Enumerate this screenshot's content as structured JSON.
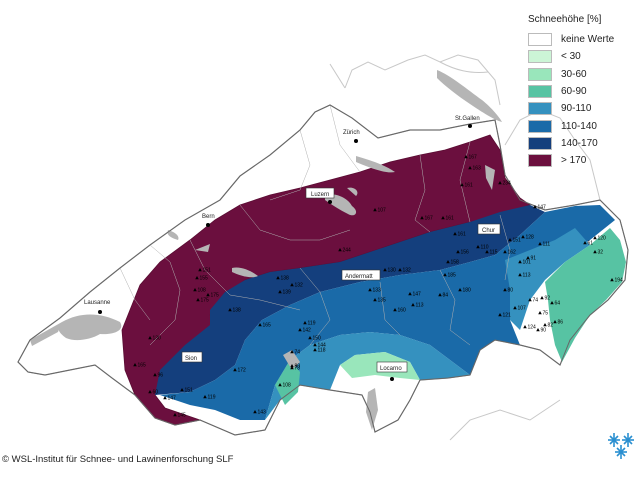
{
  "legend": {
    "title": "Schneehöhe [%]",
    "items": [
      {
        "label": "keine Werte",
        "color": "#ffffff"
      },
      {
        "label": "< 30",
        "color": "#ccf5d6"
      },
      {
        "label": "30-60",
        "color": "#99e6bb"
      },
      {
        "label": "60-90",
        "color": "#57c3a3"
      },
      {
        "label": "90-110",
        "color": "#3591bf"
      },
      {
        "label": "110-140",
        "color": "#1a6aa8"
      },
      {
        "label": "140-170",
        "color": "#143f7d"
      },
      {
        "label": "> 170",
        "color": "#6b0f3e"
      }
    ]
  },
  "cities": {
    "zurich": "Zürich",
    "stgallen": "St.Gallen",
    "bern": "Bern",
    "luzern": "Luzern",
    "chur": "Chur",
    "lausanne": "Lausanne",
    "andermatt": "Andermatt",
    "sion": "Sion",
    "locarno": "Locarno"
  },
  "stations": [
    "167",
    "163",
    "161",
    "234",
    "147",
    "107",
    "167",
    "161",
    "161",
    "110",
    "151",
    "162",
    "120",
    "128",
    "111",
    "115",
    "156",
    "91",
    "61",
    "32",
    "194",
    "158",
    "101",
    "244",
    "130",
    "132",
    "185",
    "180",
    "113",
    "84",
    "133",
    "147",
    "113",
    "135",
    "160",
    "80",
    "138",
    "139",
    "132",
    "92",
    "64",
    "74",
    "121",
    "107",
    "75",
    "82",
    "86",
    "90",
    "124",
    "142",
    "150",
    "151",
    "138",
    "165",
    "144",
    "118",
    "119",
    "74",
    "78",
    "108",
    "175",
    "175",
    "151",
    "80",
    "130",
    "165",
    "96",
    "60",
    "147",
    "145",
    "119",
    "143",
    "108",
    "155",
    "172"
  ],
  "footer": "© WSL-Institut für Schnee- und Lawinenforschung SLF",
  "logo_icon": "snowflake-logo-icon"
}
